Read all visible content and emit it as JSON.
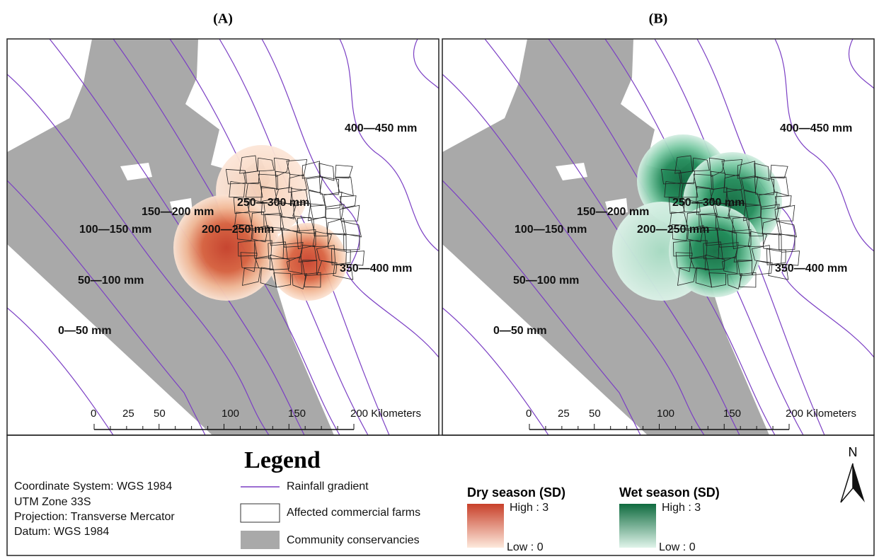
{
  "panels": [
    {
      "label": "(A)",
      "rainfall_labels": [
        "400—450 mm",
        "250—300 mm",
        "150—200 mm",
        "100—150 mm",
        "200—250 mm",
        "350—400 mm",
        "50—100 mm",
        "0—50 mm"
      ],
      "scale_labels": [
        "0",
        "25",
        "50",
        "100",
        "150",
        "200 Kilometers"
      ]
    },
    {
      "label": "(B)",
      "rainfall_labels": [
        "400—450 mm",
        "250—300 mm",
        "150—200 mm",
        "100—150 mm",
        "200—250 mm",
        "350—400 mm",
        "50—100 mm",
        "0—50 mm"
      ],
      "scale_labels": [
        "0",
        "25",
        "50",
        "100",
        "150",
        "200 Kilometers"
      ]
    }
  ],
  "legend": {
    "title": "Legend",
    "metadata": [
      "Coordinate System: WGS 1984",
      "UTM Zone 33S",
      "Projection: Transverse Mercator",
      "Datum: WGS 1984"
    ],
    "items": [
      "Rainfall gradient",
      "Affected commercial farms",
      "Community conservancies"
    ],
    "ramps": [
      {
        "title": "Dry season (SD)",
        "high": "High : 3",
        "low": "Low : 0"
      },
      {
        "title": "Wet season (SD)",
        "high": "High : 3",
        "low": "Low : 0"
      }
    ]
  },
  "north": "N"
}
